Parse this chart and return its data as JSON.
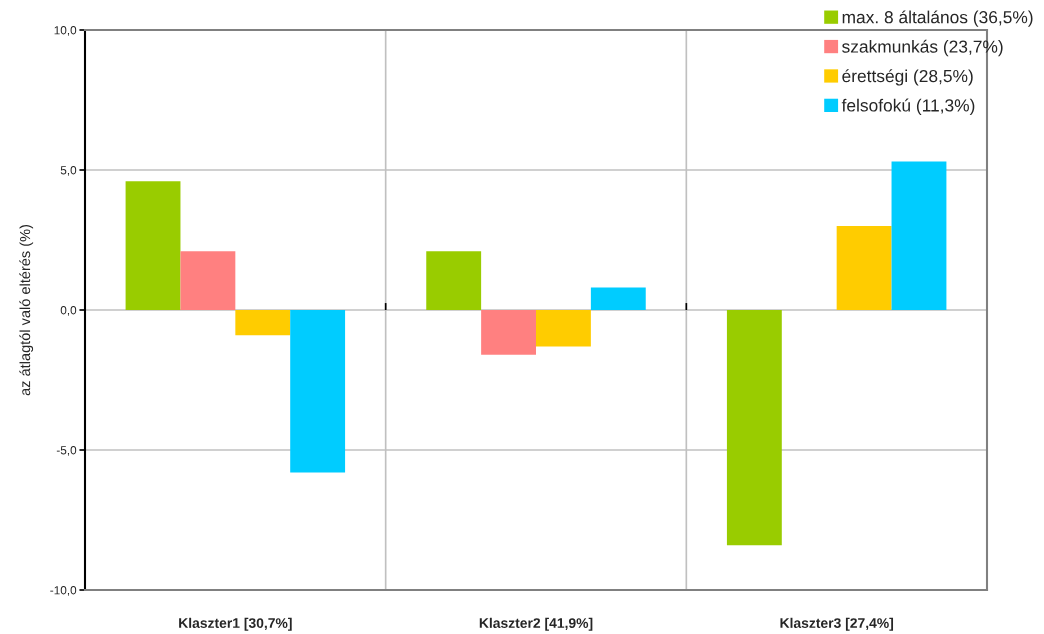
{
  "chart_data": {
    "type": "bar",
    "ylabel": "az átlagtól való eltérés (%)",
    "categories": [
      "Klaszter1 [30,7%]",
      "Klaszter2 [41,9%]",
      "Klaszter3 [27,4%]"
    ],
    "series": [
      {
        "name": "max. 8 általános (36,5%)",
        "color": "#99cc00",
        "values": [
          4.6,
          2.1,
          -8.4
        ]
      },
      {
        "name": "szakmunkás (23,7%)",
        "color": "#ff8080",
        "values": [
          2.1,
          -1.6,
          null
        ]
      },
      {
        "name": "érettségi (28,5%)",
        "color": "#ffcc00",
        "values": [
          -0.9,
          -1.3,
          3.0
        ]
      },
      {
        "name": "felsofokú (11,3%)",
        "color": "#00ccff",
        "values": [
          -5.8,
          0.8,
          5.3
        ]
      }
    ],
    "ylim": [
      -10,
      10
    ],
    "yticks": [
      {
        "value": -10,
        "label": "-10,0"
      },
      {
        "value": -5,
        "label": "-5,0"
      },
      {
        "value": 0,
        "label": "0,0"
      },
      {
        "value": 5,
        "label": "5,0"
      },
      {
        "value": 10,
        "label": "10,0"
      }
    ],
    "grid": true,
    "legend": "top right"
  }
}
